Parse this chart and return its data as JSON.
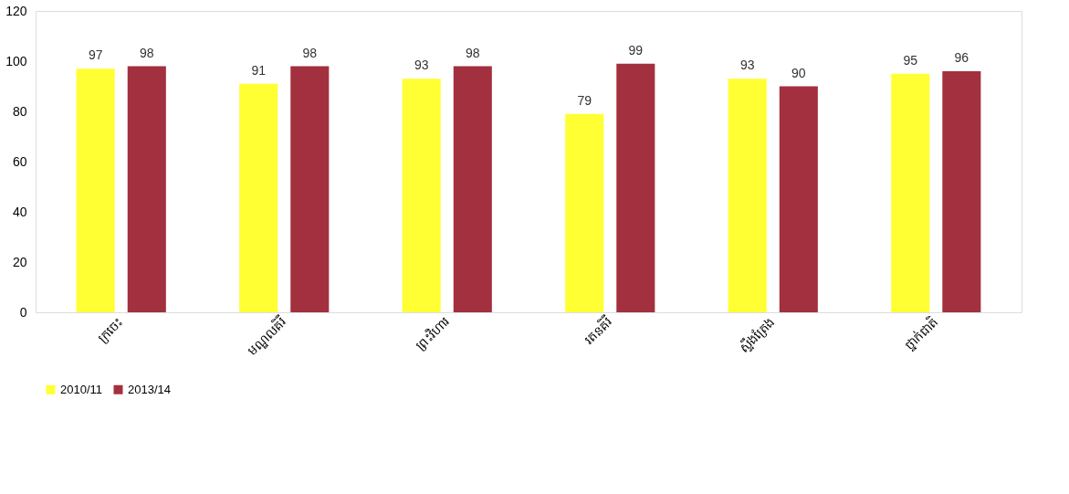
{
  "chart_data": {
    "type": "bar",
    "categories": [
      "ក្រចេះ",
      "មណ្ឌលគិរី",
      "ព្រះវិហារ",
      "រតនគិរី",
      "ស្ទឹងត្រែង",
      "ថ្នាក់ជាតិ"
    ],
    "series": [
      {
        "name": "2010/11",
        "color": "#ffff33",
        "values": [
          97,
          91,
          93,
          79,
          93,
          95
        ]
      },
      {
        "name": "2013/14",
        "color": "#a3303e",
        "values": [
          98,
          98,
          98,
          99,
          90,
          96
        ]
      }
    ],
    "ylim": [
      0,
      120
    ],
    "yticks": [
      0,
      20,
      40,
      60,
      80,
      100,
      120
    ],
    "grid": false,
    "legend": "bottom",
    "data_labels": true
  }
}
